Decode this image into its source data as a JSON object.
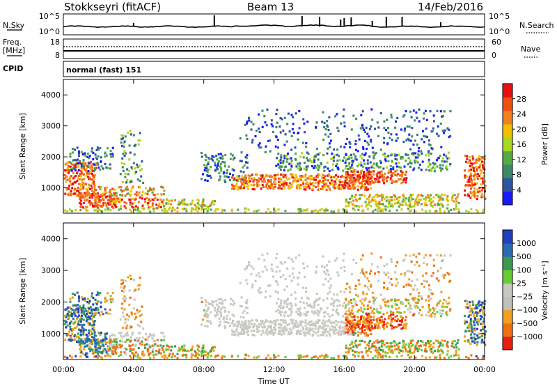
{
  "header": {
    "station": "Stokkseyri (fitACF)",
    "beam": "Beam 13",
    "date": "14/Feb/2016"
  },
  "strips": {
    "nsky_label": "N.Sky",
    "nsky_ticks": [
      "10^5",
      "10^0"
    ],
    "nsearch_label": "N.Search",
    "nsearch_ticks": [
      "10^5",
      "10^0"
    ],
    "freq_label_1": "Freq.",
    "freq_label_2": "[MHz]",
    "freq_ticks": [
      "18",
      "8"
    ],
    "nave_label": "Nave",
    "nave_ticks": [
      "60",
      "0"
    ],
    "cpid_label": "CPID",
    "cpid_value": "normal (fast) 151"
  },
  "colors": {
    "power_scale": [
      "#1a1aff",
      "#2d55a0",
      "#3a8a6a",
      "#55aa44",
      "#a8d820",
      "#f0c000",
      "#f08020",
      "#f05010",
      "#e81010"
    ],
    "velocity_scale": [
      "#2040c0",
      "#2a6ab0",
      "#3a9a50",
      "#66cc33",
      "#c8c8c0",
      "#c0c0b8",
      "#f0a020",
      "#f07010",
      "#e82010"
    ]
  },
  "chart_data": [
    {
      "type": "heatmap",
      "name": "power",
      "ylabel": "Slant Range [km]",
      "ylim": [
        180,
        4500
      ],
      "y_ticks": [
        1000,
        2000,
        3000,
        4000
      ],
      "xlim": [
        0,
        24
      ],
      "colorbar_label": "Power [dB]",
      "colorbar_ticks": [
        "4",
        "8",
        "12",
        "16",
        "20",
        "24",
        "28"
      ],
      "colorbar_range": [
        0,
        32
      ]
    },
    {
      "type": "heatmap",
      "name": "velocity",
      "ylabel": "Slant Range [km]",
      "ylim": [
        180,
        4500
      ],
      "y_ticks": [
        1000,
        2000,
        3000,
        4000
      ],
      "xlim": [
        0,
        24
      ],
      "x_tick_labels": [
        "00:00",
        "04:00",
        "08:00",
        "12:00",
        "16:00",
        "20:00",
        "00:00"
      ],
      "xlabel": "Time UT",
      "colorbar_label": "Velocity [m s⁻¹]",
      "colorbar_ticks": [
        "1000",
        "500",
        "100",
        "25",
        "−25",
        "−100",
        "−500",
        "−1000"
      ]
    }
  ]
}
